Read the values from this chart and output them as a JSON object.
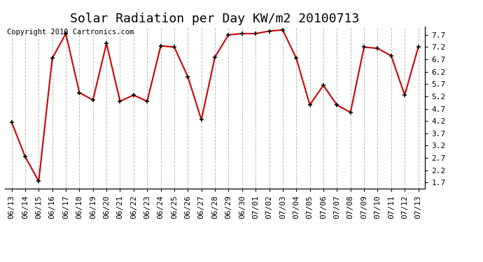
{
  "title": "Solar Radiation per Day KW/m2 20100713",
  "copyright_text": "Copyright 2010 Cartronics.com",
  "x_labels": [
    "06/13",
    "06/14",
    "06/15",
    "06/16",
    "06/17",
    "06/18",
    "06/19",
    "06/20",
    "06/21",
    "06/22",
    "06/23",
    "06/24",
    "06/25",
    "06/26",
    "06/27",
    "06/28",
    "06/29",
    "06/30",
    "07/01",
    "07/02",
    "07/03",
    "07/04",
    "07/05",
    "07/06",
    "07/07",
    "07/08",
    "07/09",
    "07/10",
    "07/11",
    "07/12",
    "07/13"
  ],
  "y_values": [
    4.15,
    2.75,
    1.75,
    6.75,
    7.75,
    5.35,
    5.05,
    7.35,
    5.0,
    5.25,
    5.0,
    7.25,
    7.2,
    6.0,
    4.25,
    6.8,
    7.7,
    7.75,
    7.75,
    7.85,
    7.9,
    6.75,
    4.85,
    5.65,
    4.85,
    4.55,
    7.2,
    7.15,
    6.85,
    5.25,
    7.2
  ],
  "line_color": "#cc0000",
  "marker_color": "#000000",
  "background_color": "#ffffff",
  "plot_bg_color": "#ffffff",
  "grid_color": "#bbbbbb",
  "ylim": [
    1.45,
    8.05
  ],
  "yticks": [
    1.7,
    2.2,
    2.7,
    3.2,
    3.7,
    4.2,
    4.7,
    5.2,
    5.7,
    6.2,
    6.7,
    7.2,
    7.7
  ],
  "title_fontsize": 13,
  "tick_fontsize": 8,
  "copyright_fontsize": 7.5
}
